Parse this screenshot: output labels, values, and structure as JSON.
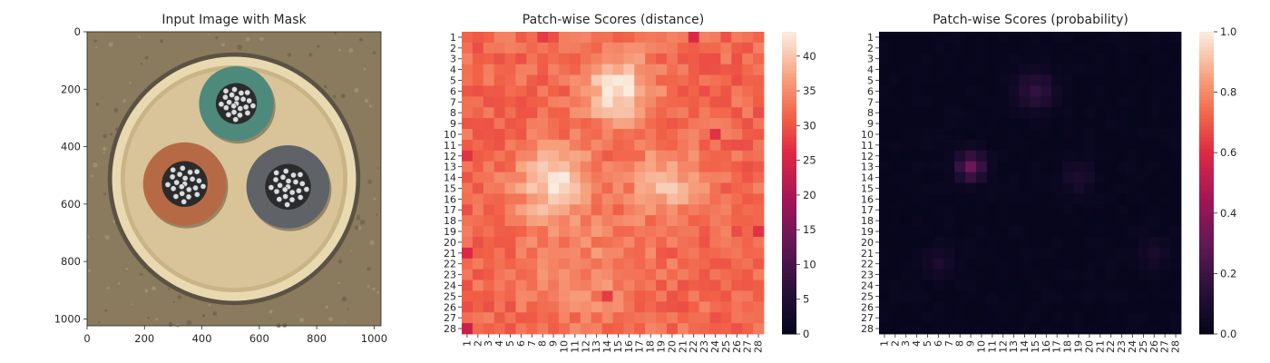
{
  "chart_data": [
    {
      "type": "image",
      "title": "Input Image with Mask",
      "x_ticks": [
        "0",
        "200",
        "400",
        "600",
        "800",
        "1000"
      ],
      "x_tick_values": [
        0,
        200,
        400,
        600,
        800,
        1000
      ],
      "y_ticks": [
        "0",
        "200",
        "400",
        "600",
        "800",
        "1000"
      ],
      "y_tick_values": [
        0,
        200,
        400,
        600,
        800,
        1000
      ],
      "xlim": [
        0,
        1024
      ],
      "ylim": [
        1024,
        0
      ],
      "scene": {
        "background": "#8a7a5e",
        "ring_color": "#e9d9b0",
        "inner_color": "#d9c49a",
        "cables": [
          {
            "name": "green",
            "cx": 520,
            "cy": 250,
            "r": 130,
            "color": "#4e8a7b"
          },
          {
            "name": "brown",
            "cx": 340,
            "cy": 530,
            "r": 145,
            "color": "#b56a45"
          },
          {
            "name": "grey",
            "cx": 700,
            "cy": 540,
            "r": 145,
            "color": "#5f6368"
          }
        ]
      }
    },
    {
      "type": "heatmap",
      "title": "Patch-wise Scores (distance)",
      "rows": 28,
      "cols": 28,
      "x_ticks": [
        "1",
        "2",
        "3",
        "4",
        "5",
        "6",
        "7",
        "8",
        "9",
        "10",
        "11",
        "12",
        "13",
        "14",
        "15",
        "16",
        "17",
        "18",
        "19",
        "20",
        "21",
        "22",
        "23",
        "24",
        "25",
        "26",
        "27",
        "28"
      ],
      "y_ticks": [
        "1",
        "2",
        "3",
        "4",
        "5",
        "6",
        "7",
        "8",
        "9",
        "10",
        "11",
        "12",
        "13",
        "14",
        "15",
        "16",
        "17",
        "18",
        "19",
        "20",
        "21",
        "22",
        "23",
        "24",
        "25",
        "26",
        "27",
        "28"
      ],
      "vmin": 0,
      "vmax": 43.5,
      "colorbar_ticks": [
        "0",
        "5",
        "10",
        "15",
        "20",
        "25",
        "30",
        "35",
        "40"
      ],
      "colorbar_values": [
        0,
        5,
        10,
        15,
        20,
        25,
        30,
        35,
        40
      ],
      "base_value": 32,
      "hotspots": [
        {
          "row": 6,
          "col": 15,
          "peak": 43,
          "spread": 2.2
        },
        {
          "row": 14.5,
          "col": 9,
          "peak": 42,
          "spread": 2.3
        },
        {
          "row": 14.5,
          "col": 19.5,
          "peak": 39,
          "spread": 2.2
        },
        {
          "row": 22.5,
          "col": 12,
          "peak": 35,
          "spread": 4
        }
      ],
      "lowspots": [
        {
          "row": 1,
          "col": 22,
          "value": 26
        },
        {
          "row": 1,
          "col": 8,
          "value": 28
        },
        {
          "row": 28,
          "col": 1,
          "value": 24
        },
        {
          "row": 21,
          "col": 1,
          "value": 26
        },
        {
          "row": 12,
          "col": 1,
          "value": 27
        },
        {
          "row": 19,
          "col": 28,
          "value": 27
        },
        {
          "row": 10,
          "col": 24,
          "value": 27
        },
        {
          "row": 25,
          "col": 14,
          "value": 28
        }
      ],
      "colormap": "rocket"
    },
    {
      "type": "heatmap",
      "title": "Patch-wise Scores (probability)",
      "rows": 28,
      "cols": 28,
      "x_ticks": [
        "1",
        "2",
        "3",
        "4",
        "5",
        "6",
        "7",
        "8",
        "9",
        "10",
        "11",
        "12",
        "13",
        "14",
        "15",
        "16",
        "17",
        "18",
        "19",
        "20",
        "21",
        "22",
        "23",
        "24",
        "25",
        "26",
        "27",
        "28"
      ],
      "y_ticks": [
        "1",
        "2",
        "3",
        "4",
        "5",
        "6",
        "7",
        "8",
        "9",
        "10",
        "11",
        "12",
        "13",
        "14",
        "15",
        "16",
        "17",
        "18",
        "19",
        "20",
        "21",
        "22",
        "23",
        "24",
        "25",
        "26",
        "27",
        "28"
      ],
      "vmin": 0,
      "vmax": 1,
      "colorbar_ticks": [
        "0.0",
        "0.2",
        "0.4",
        "0.6",
        "0.8",
        "1.0"
      ],
      "colorbar_values": [
        0,
        0.2,
        0.4,
        0.6,
        0.8,
        1.0
      ],
      "base_value": 0.02,
      "hotspots": [
        {
          "row": 13,
          "col": 9,
          "peak": 0.33,
          "spread": 0.9
        },
        {
          "row": 6,
          "col": 15,
          "peak": 0.18,
          "spread": 1.2
        },
        {
          "row": 14,
          "col": 19,
          "peak": 0.1,
          "spread": 1.0
        },
        {
          "row": 22,
          "col": 6,
          "peak": 0.1,
          "spread": 1.0
        },
        {
          "row": 21,
          "col": 26,
          "peak": 0.09,
          "spread": 1.0
        }
      ],
      "colormap": "rocket"
    }
  ]
}
